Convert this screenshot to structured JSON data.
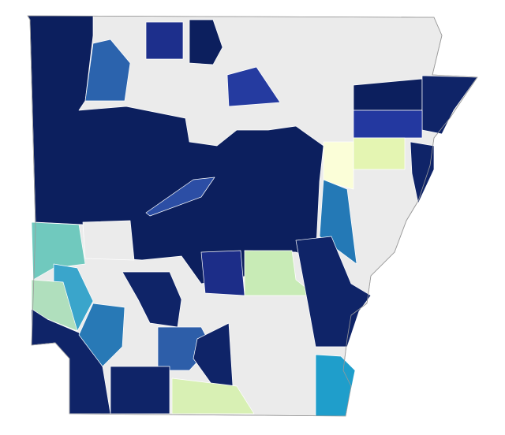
{
  "map": {
    "state_fill": "#ebebeb",
    "regions": [
      {
        "fill": "#0c1f5e"
      },
      {
        "fill": "#2b63ad"
      },
      {
        "fill": "#1d2f8c"
      },
      {
        "fill": "#0c1f5e"
      },
      {
        "fill": "#253ba0"
      },
      {
        "fill": "#0c1f5e"
      },
      {
        "fill": "#0f2468"
      },
      {
        "fill": "#2338a0"
      },
      {
        "fill": "#0f2468"
      },
      {
        "fill": "#fbfed8"
      },
      {
        "fill": "#e4f5b2"
      },
      {
        "fill": "#2c4ea5"
      },
      {
        "fill": "#2479b6"
      },
      {
        "fill": "#c8ebb6"
      },
      {
        "fill": "#0f2468"
      },
      {
        "fill": "#70c9be"
      },
      {
        "fill": "#3aa5cb"
      },
      {
        "fill": "#b0dfbd"
      },
      {
        "fill": "#0f2468"
      },
      {
        "fill": "#2879b6"
      },
      {
        "fill": "#0f2468"
      },
      {
        "fill": "#1c2d88"
      },
      {
        "fill": "#2d5ea9"
      },
      {
        "fill": "#0f2468"
      },
      {
        "fill": "#d8f0b4"
      },
      {
        "fill": "#1f9ecb"
      },
      {
        "fill": "#0f2468"
      },
      {
        "fill": "#ebebeb"
      }
    ]
  }
}
